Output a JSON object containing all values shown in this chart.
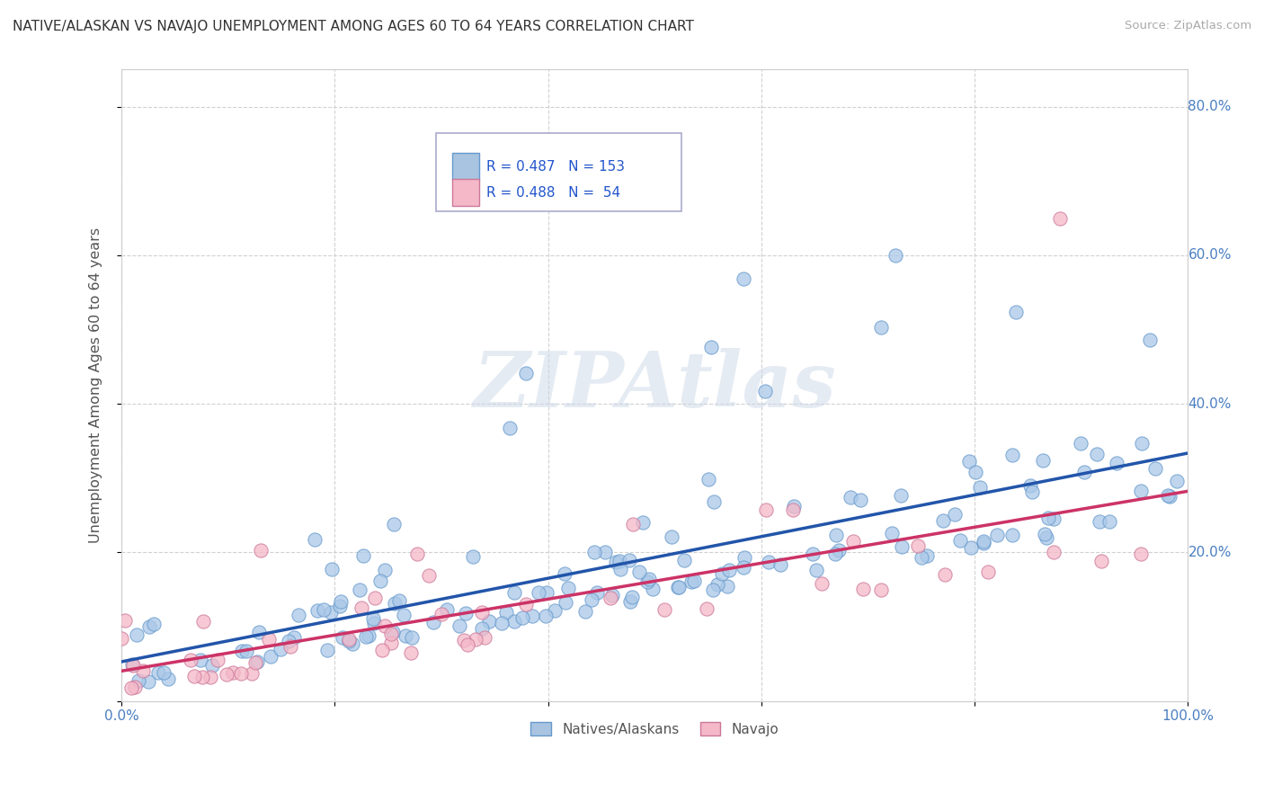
{
  "title": "NATIVE/ALASKAN VS NAVAJO UNEMPLOYMENT AMONG AGES 60 TO 64 YEARS CORRELATION CHART",
  "source": "Source: ZipAtlas.com",
  "xlabel": "",
  "ylabel": "Unemployment Among Ages 60 to 64 years",
  "xlim": [
    0,
    1.0
  ],
  "ylim": [
    0,
    0.85
  ],
  "xticks": [
    0.0,
    0.2,
    0.4,
    0.6,
    0.8,
    1.0
  ],
  "xtick_labels": [
    "0.0%",
    "",
    "",
    "",
    "",
    "100.0%"
  ],
  "yticks": [
    0.0,
    0.2,
    0.4,
    0.6,
    0.8
  ],
  "ytick_labels_right": [
    "",
    "20.0%",
    "40.0%",
    "60.0%",
    "80.0%"
  ],
  "legend_entries": [
    {
      "label": "Natives/Alaskans",
      "R": "0.487",
      "N": "153",
      "color": "#a8c4e0",
      "edge_color": "#6699cc"
    },
    {
      "label": "Navajo",
      "R": "0.488",
      "N": "54",
      "color": "#f4b8c8",
      "edge_color": "#cc7799"
    }
  ],
  "watermark": "ZIPAtlas",
  "background_color": "#ffffff",
  "grid_color": "#cccccc",
  "title_color": "#333333",
  "source_color": "#aaaaaa",
  "axis_label_color": "#555555",
  "tick_label_color": "#4a7fc1",
  "blue_scatter_color": "#aac8e8",
  "blue_scatter_edge": "#6699cc",
  "pink_scatter_color": "#f4b8c8",
  "pink_scatter_edge": "#cc7799",
  "blue_line_color": "#2255aa",
  "pink_line_color": "#cc3366",
  "legend_value_color": "#2255cc",
  "legend_border_color": "#aaaacc"
}
